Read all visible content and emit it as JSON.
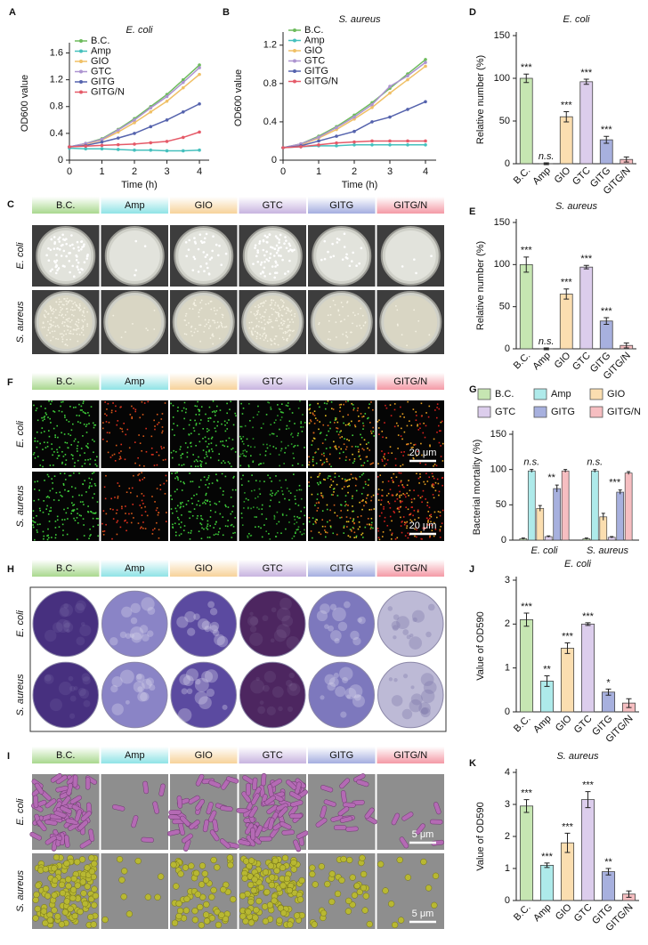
{
  "chart_data": [
    {
      "type": "line",
      "panel": "A",
      "title": "E. coli",
      "xlabel": "Time (h)",
      "ylabel": "OD600 value",
      "x": [
        0,
        0.5,
        1,
        1.5,
        2,
        2.5,
        3,
        3.5,
        4
      ],
      "xlim": [
        0,
        4.3
      ],
      "xticks": [
        0,
        1,
        2,
        3,
        4
      ],
      "ylim": [
        0,
        1.7
      ],
      "yticks": [
        0,
        0.4,
        0.8,
        1.2,
        1.6
      ],
      "series": [
        {
          "name": "B.C.",
          "color": "#6dbb5c",
          "values": [
            0.2,
            0.25,
            0.32,
            0.46,
            0.62,
            0.8,
            0.98,
            1.2,
            1.42
          ]
        },
        {
          "name": "Amp",
          "color": "#45c0bd",
          "values": [
            0.18,
            0.17,
            0.17,
            0.16,
            0.15,
            0.15,
            0.14,
            0.14,
            0.15
          ]
        },
        {
          "name": "GIO",
          "color": "#f0c066",
          "values": [
            0.2,
            0.24,
            0.3,
            0.42,
            0.56,
            0.72,
            0.88,
            1.08,
            1.28
          ]
        },
        {
          "name": "GTC",
          "color": "#ad94d0",
          "values": [
            0.2,
            0.25,
            0.31,
            0.45,
            0.6,
            0.78,
            0.95,
            1.16,
            1.38
          ]
        },
        {
          "name": "GITG",
          "color": "#5563ad",
          "values": [
            0.2,
            0.22,
            0.27,
            0.33,
            0.4,
            0.5,
            0.6,
            0.72,
            0.84
          ]
        },
        {
          "name": "GITG/N",
          "color": "#e55a68",
          "values": [
            0.2,
            0.21,
            0.22,
            0.23,
            0.24,
            0.26,
            0.28,
            0.34,
            0.42
          ]
        }
      ]
    },
    {
      "type": "line",
      "panel": "B",
      "title": "S. aureus",
      "xlabel": "Time (h)",
      "ylabel": "OD600 value",
      "x": [
        0,
        0.5,
        1,
        1.5,
        2,
        2.5,
        3,
        3.5,
        4
      ],
      "xlim": [
        0,
        4.3
      ],
      "xticks": [
        0,
        1,
        2,
        3,
        4
      ],
      "ylim": [
        0,
        1.3
      ],
      "yticks": [
        0,
        0.4,
        0.8,
        1.2
      ],
      "series": [
        {
          "name": "B.C.",
          "color": "#6dbb5c",
          "values": [
            0.13,
            0.17,
            0.25,
            0.35,
            0.47,
            0.6,
            0.75,
            0.9,
            1.05
          ]
        },
        {
          "name": "Amp",
          "color": "#45c0bd",
          "values": [
            0.13,
            0.14,
            0.15,
            0.15,
            0.16,
            0.16,
            0.16,
            0.16,
            0.16
          ]
        },
        {
          "name": "GIO",
          "color": "#f0c066",
          "values": [
            0.13,
            0.16,
            0.23,
            0.32,
            0.43,
            0.55,
            0.7,
            0.84,
            0.98
          ]
        },
        {
          "name": "GTC",
          "color": "#ad94d0",
          "values": [
            0.13,
            0.17,
            0.24,
            0.34,
            0.45,
            0.58,
            0.77,
            0.88,
            1.02
          ]
        },
        {
          "name": "GITG",
          "color": "#5563ad",
          "values": [
            0.13,
            0.15,
            0.2,
            0.25,
            0.3,
            0.4,
            0.45,
            0.53,
            0.61
          ]
        },
        {
          "name": "GITG/N",
          "color": "#e55a68",
          "values": [
            0.13,
            0.14,
            0.16,
            0.18,
            0.19,
            0.2,
            0.2,
            0.2,
            0.2
          ]
        }
      ]
    },
    {
      "type": "bar",
      "panel": "D",
      "title": "E. coli",
      "ylabel": "Relative number (%)",
      "categories": [
        "B.C.",
        "Amp",
        "GIO",
        "GTC",
        "GITG",
        "GITG/N"
      ],
      "values": [
        100,
        0,
        55,
        96,
        28,
        5
      ],
      "errors": [
        5,
        1,
        6,
        3,
        4,
        3
      ],
      "annotations": [
        "***",
        "n.s.",
        "***",
        "***",
        "***",
        null
      ],
      "colors": [
        "#c6e6b2",
        "#aeeaea",
        "#fbdeb0",
        "#dccdec",
        "#a7b0de",
        "#f6bec1"
      ],
      "ylim": [
        0,
        150
      ],
      "yticks": [
        0,
        50,
        100,
        150
      ]
    },
    {
      "type": "bar",
      "panel": "E",
      "title": "S. aureus",
      "ylabel": "Relative number (%)",
      "categories": [
        "B.C.",
        "Amp",
        "GIO",
        "GTC",
        "GITG",
        "GITG/N"
      ],
      "values": [
        100,
        0,
        65,
        97,
        33,
        4
      ],
      "errors": [
        9,
        1,
        6,
        2,
        4,
        3
      ],
      "annotations": [
        "***",
        "n.s.",
        "***",
        "***",
        "***",
        null
      ],
      "colors": [
        "#c6e6b2",
        "#aeeaea",
        "#fbdeb0",
        "#dccdec",
        "#a7b0de",
        "#f6bec1"
      ],
      "ylim": [
        0,
        150
      ],
      "yticks": [
        0,
        50,
        100,
        150
      ]
    },
    {
      "type": "grouped_bar",
      "panel": "G",
      "ylabel": "Bacterial mortality (%)",
      "categories": [
        "E. coli",
        "S. aureus"
      ],
      "ylim": [
        0,
        150
      ],
      "yticks": [
        0,
        50,
        100,
        150
      ],
      "series": [
        {
          "name": "B.C.",
          "color": "#c6e6b2",
          "values": [
            2,
            2
          ],
          "errors": [
            1,
            1
          ]
        },
        {
          "name": "Amp",
          "color": "#aeeaea",
          "values": [
            98,
            98
          ],
          "errors": [
            2,
            2
          ],
          "annotations": [
            "n.s.",
            "n.s."
          ]
        },
        {
          "name": "GIO",
          "color": "#fbdeb0",
          "values": [
            45,
            33
          ],
          "errors": [
            4,
            5
          ]
        },
        {
          "name": "GTC",
          "color": "#dccdec",
          "values": [
            5,
            4
          ],
          "errors": [
            1,
            1
          ]
        },
        {
          "name": "GITG",
          "color": "#a7b0de",
          "values": [
            73,
            68
          ],
          "errors": [
            5,
            3
          ],
          "annotations": [
            "**",
            "***"
          ]
        },
        {
          "name": "GITG/N",
          "color": "#f6bec1",
          "values": [
            98,
            95
          ],
          "errors": [
            2,
            2
          ]
        }
      ]
    },
    {
      "type": "bar",
      "panel": "J",
      "title": "E. coli",
      "ylabel": "Value of OD590",
      "categories": [
        "B.C.",
        "Amp",
        "GIO",
        "GTC",
        "GITG",
        "GITG/N"
      ],
      "values": [
        2.1,
        0.7,
        1.45,
        2.0,
        0.45,
        0.2
      ],
      "errors": [
        0.15,
        0.12,
        0.12,
        0.03,
        0.07,
        0.1
      ],
      "annotations": [
        "***",
        "**",
        "***",
        "***",
        "*",
        null
      ],
      "colors": [
        "#c6e6b2",
        "#aeeaea",
        "#fbdeb0",
        "#dccdec",
        "#a7b0de",
        "#f6bec1"
      ],
      "ylim": [
        0,
        3
      ],
      "yticks": [
        0,
        1,
        2,
        3
      ]
    },
    {
      "type": "bar",
      "panel": "K",
      "title": "S. aureus",
      "ylabel": "Value of OD590",
      "categories": [
        "B.C.",
        "Amp",
        "GIO",
        "GTC",
        "GITG",
        "GITG/N"
      ],
      "values": [
        2.95,
        1.1,
        1.8,
        3.15,
        0.9,
        0.2
      ],
      "errors": [
        0.2,
        0.07,
        0.3,
        0.25,
        0.1,
        0.1
      ],
      "annotations": [
        "***",
        "***",
        "***",
        "***",
        "**",
        null
      ],
      "colors": [
        "#c6e6b2",
        "#aeeaea",
        "#fbdeb0",
        "#dccdec",
        "#a7b0de",
        "#f6bec1"
      ],
      "ylim": [
        0,
        4
      ],
      "yticks": [
        0,
        1,
        2,
        3,
        4
      ]
    }
  ],
  "image_panels": [
    {
      "panel": "C",
      "style": "dish",
      "columns": [
        "B.C.",
        "Amp",
        "GIO",
        "GTC",
        "GITG",
        "GITG/N"
      ],
      "rows": [
        "E. coli",
        "S. aureus"
      ]
    },
    {
      "panel": "F",
      "style": "fluor",
      "columns": [
        "B.C.",
        "Amp",
        "GIO",
        "GTC",
        "GITG",
        "GITG/N"
      ],
      "rows": [
        "E. coli",
        "S. aureus"
      ],
      "scale_bar": "20 μm"
    },
    {
      "panel": "H",
      "style": "stain",
      "columns": [
        "B.C.",
        "Amp",
        "GIO",
        "GTC",
        "CITG",
        "GITG/N"
      ],
      "rows": [
        "E. coli",
        "S. aureus"
      ]
    },
    {
      "panel": "I",
      "style": "sem",
      "columns": [
        "B.C.",
        "Amp",
        "GIO",
        "GTC",
        "GITG",
        "GITG/N"
      ],
      "rows": [
        "E. coli",
        "S. aureus"
      ],
      "scale_bar": "5 μm"
    }
  ],
  "header_colors": [
    "#a9d88e",
    "#8fe3e6",
    "#f7d29a",
    "#c8b4e0",
    "#a5aee0",
    "#f49aa6"
  ]
}
